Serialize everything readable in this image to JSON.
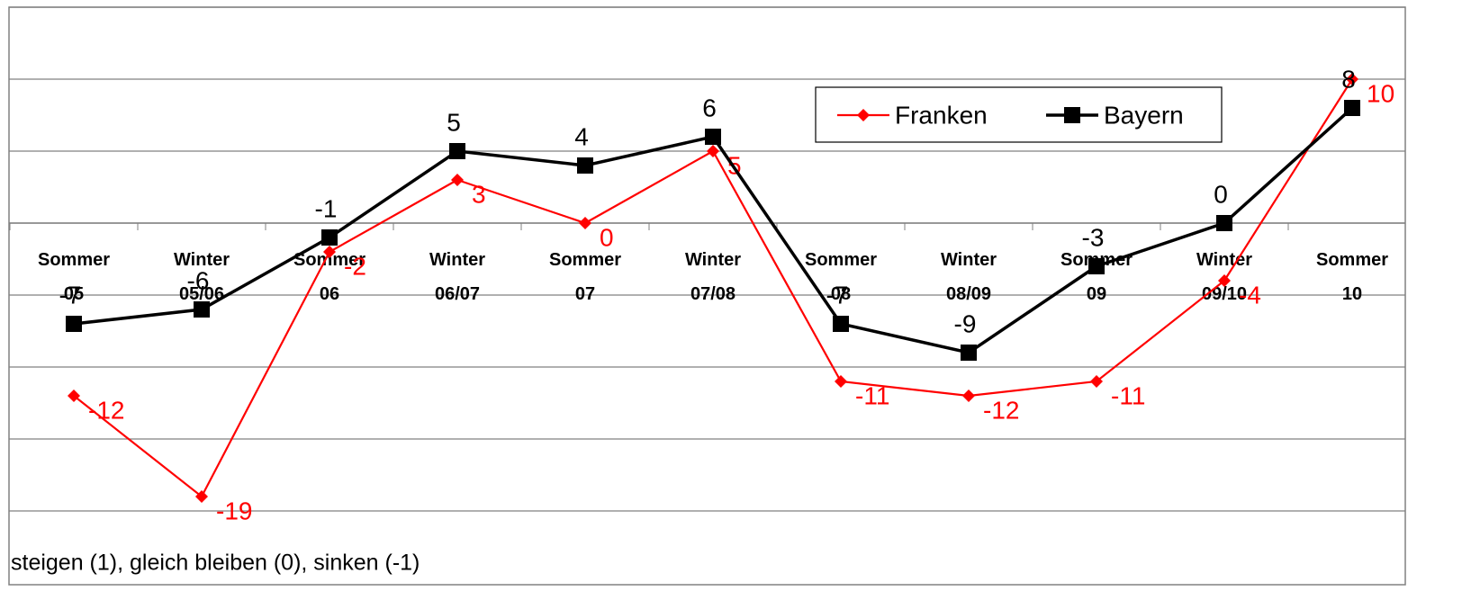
{
  "chart_data": {
    "type": "line",
    "categories": [
      "Sommer 05",
      "Winter 05/06",
      "Sommer 06",
      "Winter 06/07",
      "Sommer 07",
      "Winter 07/08",
      "Sommer 08",
      "Winter 08/09",
      "Sommer 09",
      "Winter 09/10",
      "Sommer 10"
    ],
    "series": [
      {
        "name": "Franken",
        "color": "#ff0000",
        "marker": "diamond",
        "values": [
          -12,
          -19,
          -2,
          3,
          0,
          5,
          -11,
          -12,
          -11,
          -4,
          10
        ]
      },
      {
        "name": "Bayern",
        "color": "#000000",
        "marker": "square",
        "values": [
          -7,
          -6,
          -1,
          5,
          4,
          6,
          -7,
          -9,
          -3,
          0,
          8
        ]
      }
    ],
    "ylim": [
      -20,
      15
    ],
    "yticks": [
      -20,
      -15,
      -10,
      -5,
      0,
      5,
      10,
      15
    ],
    "grid": true,
    "legend": "top-right",
    "note": "steigen (1), gleich bleiben (0), sinken (-1)"
  }
}
